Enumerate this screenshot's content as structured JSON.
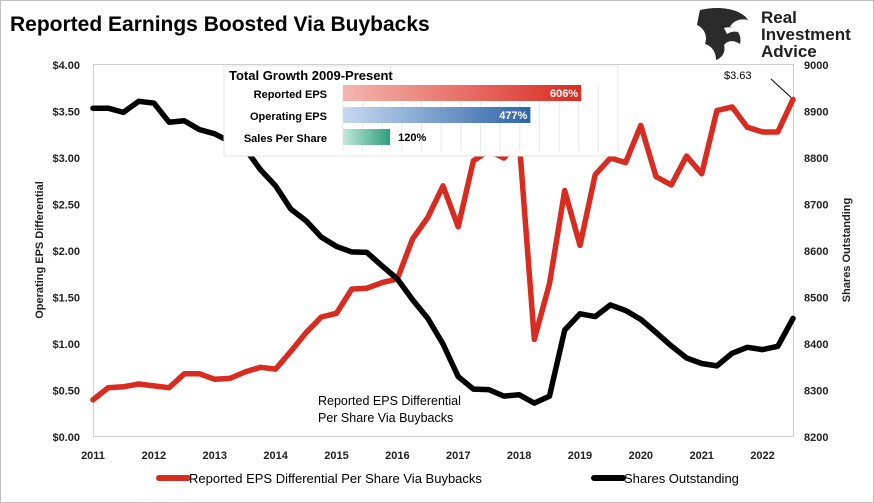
{
  "chart_data": {
    "type": "line",
    "title": "Reported Earnings Boosted Via Buybacks",
    "ylabel_left": "Operating EPS Differential",
    "ylabel_right": "Shares Outstanding",
    "ylim_left": [
      0,
      4
    ],
    "ylim_right": [
      8200,
      9000
    ],
    "xlim": [
      2011,
      2022.5
    ],
    "x_ticks": [
      "2011",
      "2012",
      "2013",
      "2014",
      "2015",
      "2016",
      "2017",
      "2018",
      "2019",
      "2020",
      "2021",
      "2022"
    ],
    "y_ticks_left": [
      "$0.00",
      "$0.50",
      "$1.00",
      "$1.50",
      "$2.00",
      "$2.50",
      "$3.00",
      "$3.50",
      "$4.00"
    ],
    "y_ticks_right": [
      "8200",
      "8300",
      "8400",
      "8500",
      "8600",
      "8700",
      "8800",
      "8900",
      "9000"
    ],
    "grid": false,
    "legend_position": "bottom",
    "series": [
      {
        "name": "Reported EPS Differential Per Share Via Buybacks",
        "axis": "left",
        "color": "#d92b20",
        "x": [
          2011.0,
          2011.25,
          2011.5,
          2011.75,
          2012.0,
          2012.25,
          2012.5,
          2012.75,
          2013.0,
          2013.25,
          2013.5,
          2013.75,
          2014.0,
          2014.25,
          2014.5,
          2014.75,
          2015.0,
          2015.25,
          2015.5,
          2015.75,
          2016.0,
          2016.25,
          2016.5,
          2016.75,
          2017.0,
          2017.25,
          2017.5,
          2017.75,
          2018.0,
          2018.25,
          2018.5,
          2018.75,
          2019.0,
          2019.25,
          2019.5,
          2019.75,
          2020.0,
          2020.25,
          2020.5,
          2020.75,
          2021.0,
          2021.25,
          2021.5,
          2021.75,
          2022.0,
          2022.25,
          2022.5
        ],
        "values": [
          0.4,
          0.53,
          0.54,
          0.57,
          0.55,
          0.53,
          0.68,
          0.68,
          0.62,
          0.63,
          0.7,
          0.75,
          0.73,
          0.92,
          1.12,
          1.29,
          1.33,
          1.59,
          1.6,
          1.66,
          1.7,
          2.13,
          2.36,
          2.7,
          2.26,
          2.97,
          3.08,
          3.0,
          3.2,
          1.05,
          1.65,
          2.65,
          2.06,
          2.82,
          3.0,
          2.95,
          3.35,
          2.8,
          2.71,
          3.02,
          2.83,
          3.51,
          3.55,
          3.33,
          3.28,
          3.28,
          3.63
        ]
      },
      {
        "name": "Shares Outstanding",
        "axis": "right",
        "color": "#000000",
        "x": [
          2011.0,
          2011.25,
          2011.5,
          2011.75,
          2012.0,
          2012.25,
          2012.5,
          2012.75,
          2013.0,
          2013.25,
          2013.5,
          2013.75,
          2014.0,
          2014.25,
          2014.5,
          2014.75,
          2015.0,
          2015.25,
          2015.5,
          2015.75,
          2016.0,
          2016.25,
          2016.5,
          2016.75,
          2017.0,
          2017.25,
          2017.5,
          2017.75,
          2018.0,
          2018.25,
          2018.5,
          2018.75,
          2019.0,
          2019.25,
          2019.5,
          2019.75,
          2020.0,
          2020.25,
          2020.5,
          2020.75,
          2021.0,
          2021.25,
          2021.5,
          2021.75,
          2022.0,
          2022.25,
          2022.5
        ],
        "values": [
          8907,
          8907,
          8898,
          8922,
          8918,
          8877,
          8880,
          8861,
          8852,
          8835,
          8820,
          8775,
          8740,
          8690,
          8665,
          8630,
          8610,
          8598,
          8597,
          8568,
          8540,
          8495,
          8455,
          8400,
          8330,
          8303,
          8302,
          8288,
          8291,
          8273,
          8288,
          8430,
          8465,
          8459,
          8484,
          8472,
          8453,
          8425,
          8396,
          8370,
          8358,
          8353,
          8380,
          8393,
          8388,
          8395,
          8455
        ]
      }
    ],
    "annotations": {
      "differential_label_line1": "Reported EPS Differential",
      "differential_label_line2": "Per Share Via Buybacks",
      "end_value_label": "$3.63"
    },
    "inset": {
      "title": "Total Growth 2009-Present",
      "max_value": 700,
      "bars": [
        {
          "label": "Reported EPS",
          "value": 606,
          "display": "606%",
          "color": "#d92b20",
          "light": "#f5b5b0",
          "text_color": "#ffffff"
        },
        {
          "label": "Operating EPS",
          "value": 477,
          "display": "477%",
          "color": "#2e64a8",
          "light": "#c6d9f0",
          "text_color": "#ffffff"
        },
        {
          "label": "Sales Per Share",
          "value": 120,
          "display": "120%",
          "color": "#2e9e7e",
          "light": "#c2e8dc",
          "text_color": "#000000"
        }
      ]
    }
  },
  "branding": {
    "line1": "Real",
    "line2": "Investment",
    "line3": "Advice",
    "icon": "eagle-logo-icon"
  },
  "legend": [
    {
      "label": "Reported EPS Differential Per Share Via Buybacks",
      "color": "#d92b20"
    },
    {
      "label": "Shares Outstanding",
      "color": "#000000"
    }
  ]
}
